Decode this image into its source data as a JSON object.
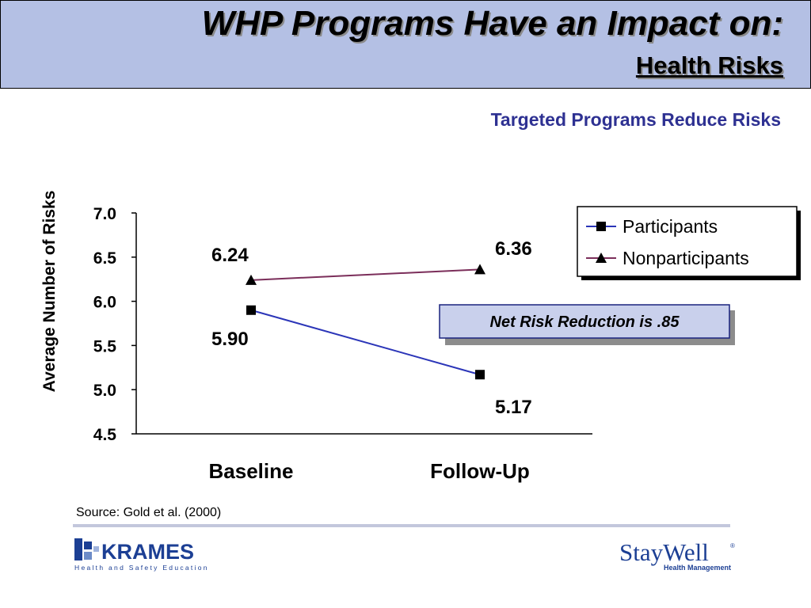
{
  "header": {
    "title": "WHP Programs Have an Impact on:",
    "subtitle": "Health Risks"
  },
  "tagline": "Targeted Programs Reduce Risks",
  "callout": "Net Risk Reduction is .85",
  "source": "Source: Gold et al. (2000)",
  "logos": {
    "krames_name": "KRAMES",
    "krames_tagline": "Health and Safety Education",
    "staywell_name": "StayWell",
    "staywell_tagline": "Health Management"
  },
  "colors": {
    "header_bg": "#b4c0e4",
    "participants": "#2b35b8",
    "nonparticipants": "#7b2e5a",
    "tagline": "#2e3192"
  },
  "chart_data": {
    "type": "line",
    "categories": [
      "Baseline",
      "Follow-Up"
    ],
    "ylabel": "Average Number of Risks",
    "xlabel": "",
    "ylim": [
      4.5,
      7.0
    ],
    "yticks": [
      "7.0",
      "6.5",
      "6.0",
      "5.5",
      "5.0",
      "4.5"
    ],
    "legend_position": "top-right",
    "series": [
      {
        "name": "Participants",
        "marker": "square",
        "values": [
          5.9,
          5.17
        ],
        "labels": [
          "5.90",
          "5.17"
        ]
      },
      {
        "name": "Nonparticipants",
        "marker": "triangle",
        "values": [
          6.24,
          6.36
        ],
        "labels": [
          "6.24",
          "6.36"
        ]
      }
    ]
  }
}
